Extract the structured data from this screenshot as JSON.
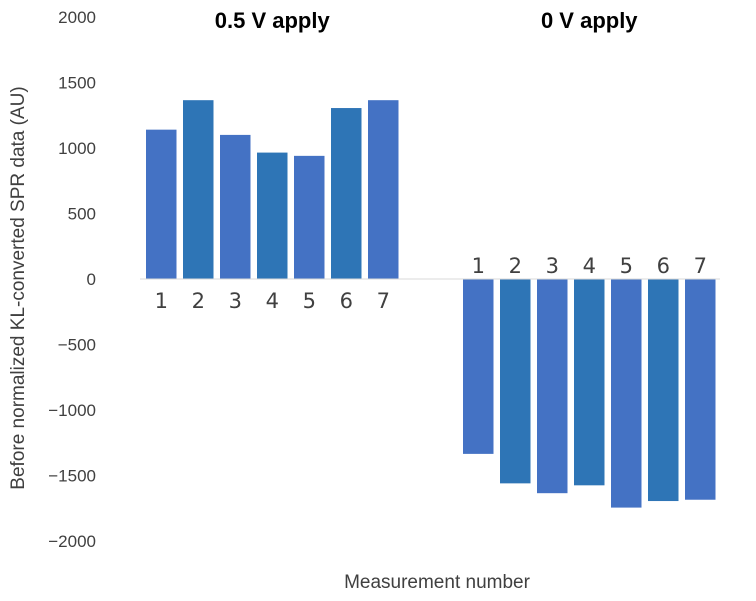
{
  "chart_data": {
    "type": "bar",
    "xlabel": "Measurement number",
    "ylabel": "Before normalized KL-converted SPR data (AU)",
    "ylim": [
      -2000,
      2000
    ],
    "yticks": [
      "2000",
      "1500",
      "1000",
      "500",
      "0",
      "−500",
      "−1000",
      "−1500",
      "−2000"
    ],
    "ytick_values": [
      2000,
      1500,
      1000,
      500,
      0,
      -500,
      -1000,
      -1500,
      -2000
    ],
    "grid": false,
    "groups": [
      {
        "title": "0.5 V apply",
        "categories": [
          "1",
          "2",
          "3",
          "4",
          "5",
          "6",
          "7"
        ],
        "values": [
          1140,
          1365,
          1100,
          965,
          940,
          1305,
          1365
        ]
      },
      {
        "title": "0 V apply",
        "categories": [
          "1",
          "2",
          "3",
          "4",
          "5",
          "6",
          "7"
        ],
        "values": [
          -1335,
          -1560,
          -1635,
          -1575,
          -1745,
          -1695,
          -1685
        ]
      }
    ],
    "colors": [
      "#4472c4",
      "#2e75b6"
    ]
  }
}
